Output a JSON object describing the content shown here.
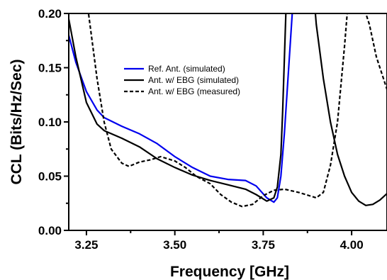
{
  "chart_data": {
    "type": "line",
    "xlabel": "Frequency [GHz]",
    "ylabel": "CCL (Bits/Hz/Sec)",
    "xlim": [
      3.2,
      4.1
    ],
    "ylim": [
      0.0,
      0.2
    ],
    "x_ticks": [
      3.25,
      3.5,
      3.75,
      4.0
    ],
    "x_tick_labels": [
      "3.25",
      "3.50",
      "3.75",
      "4.00"
    ],
    "y_ticks": [
      0.0,
      0.05,
      0.1,
      0.15,
      0.2
    ],
    "y_tick_labels": [
      "0.00",
      "0.05",
      "0.10",
      "0.15",
      "0.20"
    ],
    "grid": false,
    "legend_position": "upper-center",
    "series": [
      {
        "name": "Ref. Ant. (simulated)",
        "color": "#0000ee",
        "dash": "solid",
        "points": [
          [
            3.2,
            0.18
          ],
          [
            3.22,
            0.155
          ],
          [
            3.25,
            0.128
          ],
          [
            3.28,
            0.111
          ],
          [
            3.3,
            0.104
          ],
          [
            3.35,
            0.096
          ],
          [
            3.4,
            0.089
          ],
          [
            3.45,
            0.08
          ],
          [
            3.5,
            0.068
          ],
          [
            3.55,
            0.058
          ],
          [
            3.6,
            0.05
          ],
          [
            3.65,
            0.047
          ],
          [
            3.7,
            0.046
          ],
          [
            3.73,
            0.041
          ],
          [
            3.76,
            0.03
          ],
          [
            3.78,
            0.026
          ],
          [
            3.79,
            0.03
          ],
          [
            3.8,
            0.05
          ],
          [
            3.81,
            0.09
          ],
          [
            3.82,
            0.14
          ],
          [
            3.83,
            0.19
          ],
          [
            3.835,
            0.215
          ]
        ]
      },
      {
        "name": "Ant. w/ EBG (simulated)",
        "color": "#000000",
        "dash": "solid",
        "points": [
          [
            3.2,
            0.195
          ],
          [
            3.22,
            0.16
          ],
          [
            3.25,
            0.118
          ],
          [
            3.28,
            0.098
          ],
          [
            3.3,
            0.092
          ],
          [
            3.35,
            0.085
          ],
          [
            3.4,
            0.077
          ],
          [
            3.45,
            0.066
          ],
          [
            3.5,
            0.058
          ],
          [
            3.55,
            0.051
          ],
          [
            3.6,
            0.046
          ],
          [
            3.65,
            0.042
          ],
          [
            3.7,
            0.038
          ],
          [
            3.73,
            0.033
          ],
          [
            3.76,
            0.027
          ],
          [
            3.78,
            0.03
          ],
          [
            3.79,
            0.04
          ],
          [
            3.8,
            0.07
          ],
          [
            3.805,
            0.11
          ],
          [
            3.81,
            0.16
          ],
          [
            3.815,
            0.21
          ],
          [
            3.895,
            0.21
          ],
          [
            3.9,
            0.19
          ],
          [
            3.92,
            0.14
          ],
          [
            3.94,
            0.1
          ],
          [
            3.96,
            0.07
          ],
          [
            3.98,
            0.05
          ],
          [
            4.0,
            0.035
          ],
          [
            4.02,
            0.027
          ],
          [
            4.04,
            0.023
          ],
          [
            4.06,
            0.024
          ],
          [
            4.08,
            0.028
          ],
          [
            4.1,
            0.034
          ]
        ]
      },
      {
        "name": "Ant. w/ EBG (measured)",
        "color": "#000000",
        "dash": "dashed",
        "points": [
          [
            3.25,
            0.215
          ],
          [
            3.26,
            0.19
          ],
          [
            3.28,
            0.14
          ],
          [
            3.3,
            0.1
          ],
          [
            3.32,
            0.075
          ],
          [
            3.35,
            0.062
          ],
          [
            3.37,
            0.059
          ],
          [
            3.4,
            0.063
          ],
          [
            3.43,
            0.065
          ],
          [
            3.46,
            0.068
          ],
          [
            3.5,
            0.064
          ],
          [
            3.53,
            0.058
          ],
          [
            3.56,
            0.05
          ],
          [
            3.6,
            0.043
          ],
          [
            3.63,
            0.033
          ],
          [
            3.66,
            0.026
          ],
          [
            3.69,
            0.022
          ],
          [
            3.72,
            0.024
          ],
          [
            3.75,
            0.032
          ],
          [
            3.78,
            0.037
          ],
          [
            3.81,
            0.038
          ],
          [
            3.85,
            0.035
          ],
          [
            3.88,
            0.032
          ],
          [
            3.9,
            0.03
          ],
          [
            3.92,
            0.035
          ],
          [
            3.94,
            0.06
          ],
          [
            3.96,
            0.1
          ],
          [
            3.98,
            0.17
          ],
          [
            3.99,
            0.21
          ],
          [
            4.03,
            0.21
          ],
          [
            4.05,
            0.19
          ],
          [
            4.07,
            0.16
          ],
          [
            4.1,
            0.13
          ]
        ]
      }
    ]
  }
}
